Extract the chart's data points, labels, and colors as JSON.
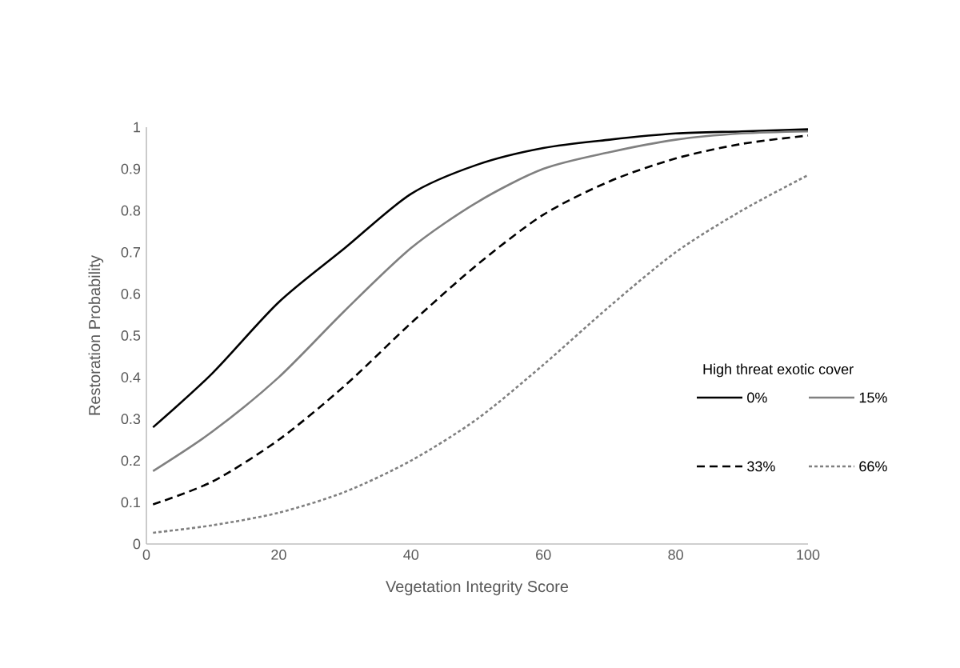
{
  "chart_data": {
    "type": "line",
    "xlabel": "Vegetation Integrity Score",
    "ylabel": "Restoration Probability",
    "legend_title": "High threat exotic cover",
    "series": [
      {
        "name": "0%",
        "color": "#000000",
        "line_style": "solid",
        "x": [
          1,
          10,
          20,
          30,
          40,
          50,
          60,
          70,
          80,
          90,
          100
        ],
        "values": [
          0.28,
          0.41,
          0.58,
          0.71,
          0.84,
          0.91,
          0.95,
          0.97,
          0.985,
          0.99,
          0.995
        ]
      },
      {
        "name": "15%",
        "color": "#808080",
        "line_style": "solid",
        "x": [
          1,
          10,
          20,
          30,
          40,
          50,
          60,
          70,
          80,
          90,
          100
        ],
        "values": [
          0.175,
          0.27,
          0.4,
          0.56,
          0.71,
          0.82,
          0.9,
          0.94,
          0.97,
          0.985,
          0.99
        ]
      },
      {
        "name": "33%",
        "color": "#000000",
        "line_style": "dashed",
        "x": [
          1,
          10,
          20,
          30,
          40,
          50,
          60,
          70,
          80,
          90,
          100
        ],
        "values": [
          0.095,
          0.15,
          0.25,
          0.38,
          0.53,
          0.67,
          0.79,
          0.87,
          0.925,
          0.96,
          0.98
        ]
      },
      {
        "name": "66%",
        "color": "#808080",
        "line_style": "dotted",
        "x": [
          1,
          10,
          20,
          30,
          40,
          50,
          60,
          70,
          80,
          90,
          100
        ],
        "values": [
          0.027,
          0.045,
          0.075,
          0.125,
          0.2,
          0.3,
          0.43,
          0.57,
          0.7,
          0.8,
          0.885
        ]
      }
    ],
    "xlim": [
      0,
      100
    ],
    "xticks": [
      0,
      20,
      40,
      60,
      80,
      100
    ],
    "ylim": [
      0,
      1
    ],
    "yticks": [
      0,
      0.1,
      0.2,
      0.3,
      0.4,
      0.5,
      0.6,
      0.7,
      0.8,
      0.9,
      1
    ],
    "legend": "right"
  }
}
